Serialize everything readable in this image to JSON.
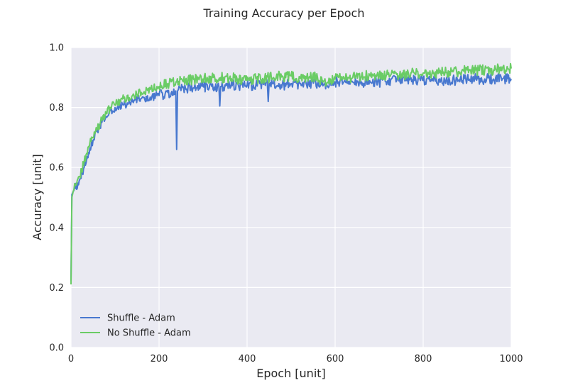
{
  "chart_data": {
    "type": "line",
    "title": "Training Accuracy per Epoch",
    "xlabel": "Epoch [unit]",
    "ylabel": "Accuracy [unit]",
    "xlim": [
      0,
      1000
    ],
    "ylim": [
      0.0,
      1.0
    ],
    "xticks": [
      0,
      200,
      400,
      600,
      800,
      1000
    ],
    "xtick_labels": [
      "0",
      "200",
      "400",
      "600",
      "800",
      "1000"
    ],
    "yticks": [
      0.0,
      0.2,
      0.4,
      0.6,
      0.8,
      1.0
    ],
    "ytick_labels": [
      "0.0",
      "0.2",
      "0.4",
      "0.6",
      "0.8",
      "1.0"
    ],
    "grid": true,
    "background": "#eaeaf2",
    "legend_position": "lower-left",
    "series": [
      {
        "name": "Shuffle - Adam",
        "color": "#4878cf",
        "x": [
          0,
          2,
          5,
          10,
          20,
          30,
          40,
          50,
          60,
          70,
          80,
          90,
          100,
          120,
          140,
          160,
          180,
          200,
          220,
          238,
          240,
          242,
          244,
          260,
          280,
          300,
          320,
          336,
          338,
          340,
          342,
          360,
          380,
          400,
          420,
          440,
          446,
          448,
          450,
          460,
          480,
          500,
          520,
          540,
          560,
          580,
          600,
          620,
          640,
          660,
          680,
          700,
          720,
          740,
          760,
          780,
          800,
          820,
          840,
          860,
          880,
          900,
          920,
          940,
          960,
          980,
          1000
        ],
        "y": [
          0.22,
          0.51,
          0.52,
          0.53,
          0.56,
          0.6,
          0.65,
          0.69,
          0.72,
          0.75,
          0.77,
          0.79,
          0.8,
          0.81,
          0.82,
          0.83,
          0.835,
          0.84,
          0.85,
          0.855,
          0.66,
          0.855,
          0.86,
          0.865,
          0.865,
          0.87,
          0.87,
          0.87,
          0.805,
          0.87,
          0.87,
          0.875,
          0.875,
          0.875,
          0.875,
          0.88,
          0.88,
          0.82,
          0.88,
          0.88,
          0.875,
          0.88,
          0.88,
          0.88,
          0.88,
          0.88,
          0.885,
          0.885,
          0.885,
          0.885,
          0.885,
          0.885,
          0.89,
          0.89,
          0.89,
          0.89,
          0.89,
          0.89,
          0.89,
          0.89,
          0.89,
          0.895,
          0.895,
          0.895,
          0.895,
          0.895,
          0.895
        ]
      },
      {
        "name": "No Shuffle - Adam",
        "color": "#6acc65",
        "x": [
          0,
          2,
          5,
          10,
          20,
          30,
          40,
          50,
          60,
          70,
          80,
          90,
          100,
          120,
          140,
          160,
          180,
          200,
          220,
          240,
          260,
          280,
          300,
          320,
          340,
          360,
          380,
          400,
          420,
          440,
          460,
          480,
          500,
          520,
          540,
          560,
          580,
          600,
          620,
          640,
          660,
          680,
          700,
          720,
          740,
          760,
          780,
          800,
          820,
          840,
          860,
          880,
          900,
          920,
          940,
          960,
          980,
          1000
        ],
        "y": [
          0.21,
          0.5,
          0.52,
          0.54,
          0.57,
          0.62,
          0.67,
          0.7,
          0.73,
          0.76,
          0.78,
          0.8,
          0.81,
          0.83,
          0.84,
          0.85,
          0.86,
          0.87,
          0.88,
          0.885,
          0.89,
          0.895,
          0.895,
          0.9,
          0.9,
          0.9,
          0.895,
          0.89,
          0.895,
          0.9,
          0.9,
          0.905,
          0.905,
          0.9,
          0.9,
          0.9,
          0.875,
          0.895,
          0.9,
          0.9,
          0.905,
          0.905,
          0.905,
          0.91,
          0.91,
          0.91,
          0.915,
          0.915,
          0.915,
          0.915,
          0.92,
          0.92,
          0.925,
          0.925,
          0.925,
          0.925,
          0.93,
          0.93
        ]
      }
    ]
  }
}
